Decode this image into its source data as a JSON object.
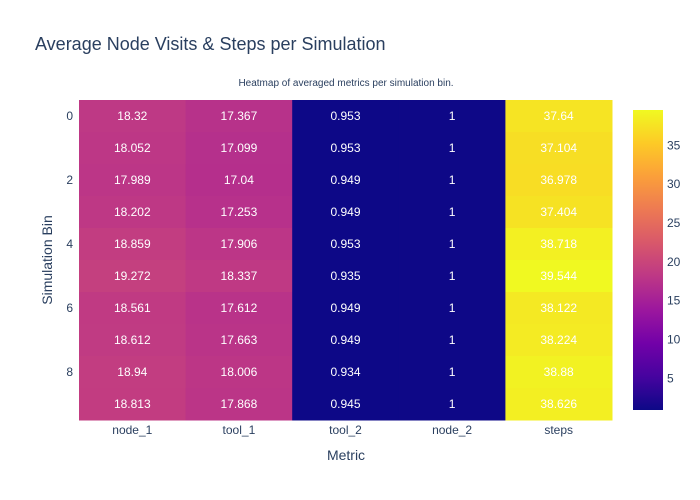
{
  "chart_data": {
    "type": "heatmap",
    "title": "Average Node Visits & Steps per Simulation",
    "subtitle": "Heatmap of averaged metrics per simulation bin.",
    "xlabel": "Metric",
    "ylabel": "Simulation Bin",
    "x": [
      "node_1",
      "tool_1",
      "tool_2",
      "node_2",
      "steps"
    ],
    "y": [
      0,
      1,
      2,
      3,
      4,
      5,
      6,
      7,
      8,
      9
    ],
    "y_tick_labels": [
      "0",
      "2",
      "4",
      "6",
      "8"
    ],
    "values": [
      [
        18.32,
        17.367,
        0.953,
        1,
        37.64
      ],
      [
        18.052,
        17.099,
        0.953,
        1,
        37.104
      ],
      [
        17.989,
        17.04,
        0.949,
        1,
        36.978
      ],
      [
        18.202,
        17.253,
        0.949,
        1,
        37.404
      ],
      [
        18.859,
        17.906,
        0.953,
        1,
        38.718
      ],
      [
        19.272,
        18.337,
        0.935,
        1,
        39.544
      ],
      [
        18.561,
        17.612,
        0.949,
        1,
        38.122
      ],
      [
        18.612,
        17.663,
        0.949,
        1,
        38.224
      ],
      [
        18.94,
        18.006,
        0.934,
        1,
        38.88
      ],
      [
        18.813,
        17.868,
        0.945,
        1,
        38.626
      ]
    ],
    "zlim": [
      0.934,
      39.544
    ],
    "colorscale": "plasma",
    "colorbar_ticks": [
      5,
      10,
      15,
      20,
      25,
      30,
      35
    ],
    "colors": [
      "#0d0887",
      "#46039f",
      "#7201a8",
      "#9c179e",
      "#bd3786",
      "#d8576b",
      "#ed7953",
      "#fb9f3a",
      "#fdca26",
      "#f0f921"
    ]
  }
}
